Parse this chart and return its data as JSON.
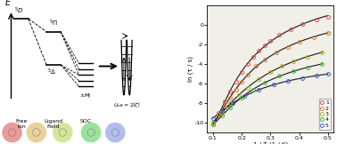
{
  "plot_xlim": [
    0.08,
    0.52
  ],
  "plot_ylim": [
    -11,
    2
  ],
  "plot_xticks": [
    0.1,
    0.2,
    0.3,
    0.4,
    0.5
  ],
  "plot_yticks": [
    0,
    -2,
    -4,
    -6,
    -8,
    -10
  ],
  "xlabel": "1 / T (1 / K)",
  "ylabel": "ln (τ / s)",
  "series": [
    {
      "label": "1",
      "color": "#e05050",
      "x_data": [
        0.1,
        0.12,
        0.14,
        0.16,
        0.18,
        0.2,
        0.22,
        0.24,
        0.26,
        0.28,
        0.3,
        0.33,
        0.37,
        0.41,
        0.46,
        0.5
      ],
      "y_data": [
        -10.2,
        -9.0,
        -7.8,
        -6.8,
        -5.8,
        -4.8,
        -4.0,
        -3.2,
        -2.6,
        -2.1,
        -1.6,
        -1.0,
        -0.4,
        0.1,
        0.6,
        0.9
      ]
    },
    {
      "label": "2",
      "color": "#d08030",
      "x_data": [
        0.1,
        0.12,
        0.14,
        0.16,
        0.18,
        0.2,
        0.22,
        0.25,
        0.28,
        0.32,
        0.36,
        0.4,
        0.45,
        0.5
      ],
      "y_data": [
        -10.0,
        -9.2,
        -8.3,
        -7.4,
        -6.6,
        -5.8,
        -5.1,
        -4.2,
        -3.5,
        -2.8,
        -2.2,
        -1.7,
        -1.2,
        -0.8
      ]
    },
    {
      "label": "3",
      "color": "#b0b020",
      "x_data": [
        0.1,
        0.13,
        0.16,
        0.19,
        0.22,
        0.26,
        0.3,
        0.34,
        0.38,
        0.43,
        0.48
      ],
      "y_data": [
        -10.0,
        -9.0,
        -8.0,
        -7.2,
        -6.4,
        -5.5,
        -4.8,
        -4.2,
        -3.7,
        -3.2,
        -2.8
      ]
    },
    {
      "label": "4",
      "color": "#40b840",
      "x_data": [
        0.1,
        0.13,
        0.16,
        0.2,
        0.24,
        0.28,
        0.33,
        0.38,
        0.43,
        0.48
      ],
      "y_data": [
        -10.2,
        -9.3,
        -8.4,
        -7.4,
        -6.6,
        -5.9,
        -5.2,
        -4.7,
        -4.3,
        -4.0
      ]
    },
    {
      "label": "5",
      "color": "#4060d0",
      "x_data": [
        0.1,
        0.13,
        0.17,
        0.21,
        0.26,
        0.31,
        0.36,
        0.41,
        0.46,
        0.5
      ],
      "y_data": [
        -9.5,
        -8.8,
        -8.0,
        -7.3,
        -6.6,
        -6.1,
        -5.7,
        -5.4,
        -5.2,
        -5.0
      ]
    }
  ],
  "mol_colors": [
    "#cc2222",
    "#cc9922",
    "#99cc22",
    "#22bb22",
    "#2244cc"
  ],
  "mol_alphas": [
    0.45,
    0.45,
    0.45,
    0.45,
    0.35
  ]
}
